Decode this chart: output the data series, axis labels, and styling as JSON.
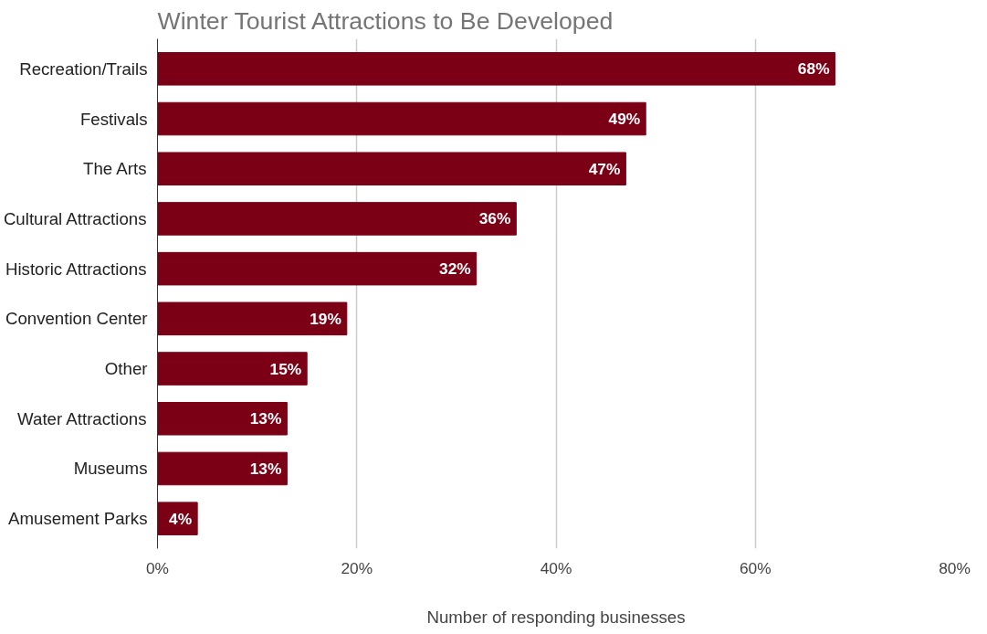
{
  "chart_data": {
    "type": "bar",
    "orientation": "horizontal",
    "title": "Winter Tourist Attractions to Be Developed",
    "xlabel": "Number of responding businesses",
    "categories": [
      "Recreation/Trails",
      "Festivals",
      "The Arts",
      "Cultural Attractions",
      "Historic Attractions",
      "Convention Center",
      "Other",
      "Water Attractions",
      "Museums",
      "Amusement Parks"
    ],
    "values": [
      68,
      49,
      47,
      36,
      32,
      19,
      15,
      13,
      13,
      4
    ],
    "value_labels": [
      "68%",
      "49%",
      "47%",
      "36%",
      "32%",
      "19%",
      "15%",
      "13%",
      "13%",
      "4%"
    ],
    "color": "#7b0016",
    "xlim": [
      0,
      80
    ],
    "xticks": [
      {
        "value": 0,
        "label": "0%"
      },
      {
        "value": 20,
        "label": "20%"
      },
      {
        "value": 40,
        "label": "40%"
      },
      {
        "value": 60,
        "label": "60%"
      },
      {
        "value": 80,
        "label": "80%"
      }
    ],
    "grid": "x"
  }
}
